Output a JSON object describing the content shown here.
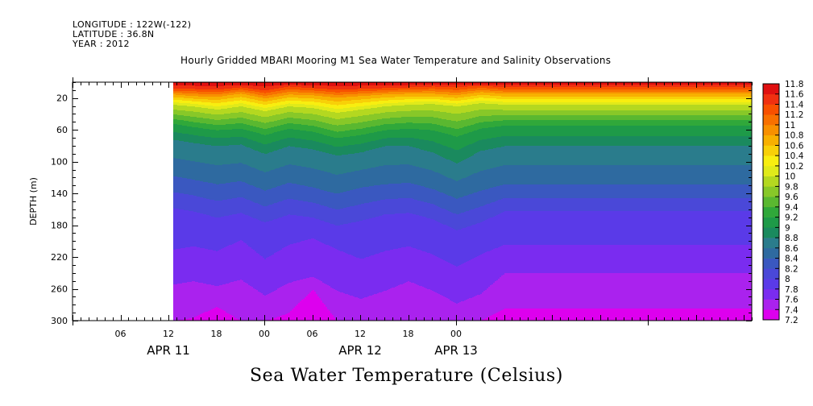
{
  "header": {
    "longitude": "LONGITUDE : 122W(-122)",
    "latitude": "LATITUDE : 36.8N",
    "year": "YEAR : 2012"
  },
  "chart_data": {
    "type": "heatmap",
    "title": "Hourly Gridded MBARI Mooring M1 Sea Water Temperature and Salinity Observations",
    "subtitle": "Sea Water Temperature (Celsius)",
    "ylabel": "DEPTH (m)",
    "y_axis": {
      "range": [
        0,
        300
      ],
      "inverted": true,
      "tick_labels": [
        20,
        60,
        100,
        140,
        180,
        220,
        260,
        300
      ]
    },
    "x_axis": {
      "range_hours_from_apr10_00": [
        0,
        85
      ],
      "tick_labels": [
        "06",
        "12",
        "18",
        "00",
        "06",
        "12",
        "18",
        "00"
      ],
      "tick_hours": [
        6,
        12,
        18,
        24,
        30,
        36,
        42,
        48
      ],
      "date_labels": [
        {
          "label": "APR 11",
          "hour": 12
        },
        {
          "label": "APR 12",
          "hour": 36
        },
        {
          "label": "APR 13",
          "hour": 48
        }
      ]
    },
    "data_start_hour": 12.6,
    "colorbar": {
      "levels": [
        7.2,
        7.4,
        7.6,
        7.8,
        8,
        8.2,
        8.4,
        8.6,
        8.8,
        9,
        9.2,
        9.4,
        9.6,
        9.8,
        10,
        10.2,
        10.4,
        10.6,
        10.8,
        11,
        11.2,
        11.4,
        11.6,
        11.8
      ],
      "labels": [
        "7.2",
        "7.4",
        "7.6",
        "7.8",
        "8",
        "8.2",
        "8.4",
        "8.6",
        "8.8",
        "9",
        "9.2",
        "9.4",
        "9.6",
        "9.8",
        "10",
        "10.2",
        "10.4",
        "10.6",
        "10.8",
        "11",
        "11.2",
        "11.4",
        "11.6",
        "11.8"
      ],
      "colors": [
        "#dd00ee",
        "#aa22ee",
        "#7a2cf0",
        "#5a3ae8",
        "#4a48d8",
        "#3a58c0",
        "#2e6aa0",
        "#2a7c8c",
        "#1a8a5e",
        "#1e9a48",
        "#30a83a",
        "#5ab830",
        "#88c828",
        "#b4d820",
        "#e0ea1a",
        "#f8ee10",
        "#f8d008",
        "#f8b000",
        "#f89000",
        "#f87000",
        "#f85000",
        "#f03010",
        "#e01010",
        "#b00000"
      ]
    },
    "isotherm_depths": {
      "hours": [
        12.6,
        15,
        18,
        21,
        24,
        27,
        30,
        33,
        36,
        39,
        42,
        45,
        48,
        51,
        54
      ],
      "t11_4": [
        8,
        8,
        9,
        6,
        10,
        5,
        7,
        9,
        8,
        7,
        6,
        5,
        6,
        4,
        6
      ],
      "t10_8": [
        15,
        17,
        18,
        14,
        20,
        15,
        16,
        19,
        17,
        15,
        14,
        14,
        16,
        12,
        14
      ],
      "t10_0": [
        28,
        30,
        34,
        30,
        36,
        30,
        32,
        38,
        34,
        30,
        28,
        27,
        30,
        26,
        28
      ],
      "t9_2": [
        52,
        56,
        60,
        58,
        66,
        58,
        62,
        70,
        66,
        60,
        58,
        60,
        68,
        58,
        54
      ],
      "t8_8": [
        72,
        76,
        80,
        78,
        90,
        80,
        84,
        92,
        88,
        80,
        80,
        88,
        102,
        86,
        80
      ],
      "t8_4": [
        118,
        122,
        128,
        124,
        136,
        126,
        132,
        140,
        132,
        128,
        126,
        134,
        146,
        136,
        128
      ],
      "t8_0": [
        158,
        162,
        170,
        164,
        176,
        166,
        170,
        180,
        174,
        166,
        164,
        172,
        186,
        176,
        162
      ],
      "t7_8": [
        210,
        206,
        212,
        198,
        222,
        204,
        196,
        210,
        222,
        212,
        206,
        216,
        232,
        216,
        204
      ],
      "t7_6": [
        254,
        250,
        256,
        248,
        268,
        252,
        244,
        262,
        272,
        262,
        250,
        262,
        278,
        266,
        240
      ],
      "t7_4": [
        300,
        296,
        282,
        300,
        300,
        290,
        260,
        300,
        300,
        300,
        300,
        300,
        300,
        300,
        284
      ]
    }
  }
}
